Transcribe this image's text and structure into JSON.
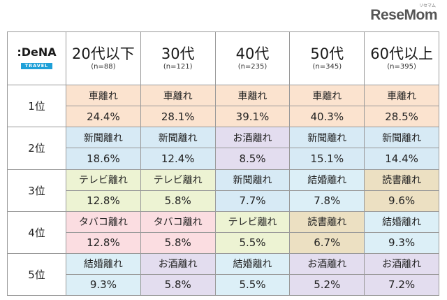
{
  "watermark": {
    "text": "ReseMom",
    "sub": "リセマム"
  },
  "logo": {
    "brand": ":DeNA",
    "sub": "TRAVEL"
  },
  "ages": [
    {
      "label": "20代以下",
      "n": "(n=88)"
    },
    {
      "label": "30代",
      "n": "(n=121)"
    },
    {
      "label": "40代",
      "n": "(n=235)"
    },
    {
      "label": "50代",
      "n": "(n=345)"
    },
    {
      "label": "60代以上",
      "n": "(n=395)"
    }
  ],
  "ranks": [
    {
      "rank": "1位",
      "cells": [
        {
          "item": "車離れ",
          "pct": "24.4%"
        },
        {
          "item": "車離れ",
          "pct": "28.1%"
        },
        {
          "item": "車離れ",
          "pct": "39.1%"
        },
        {
          "item": "車離れ",
          "pct": "40.3%"
        },
        {
          "item": "車離れ",
          "pct": "28.5%"
        }
      ]
    },
    {
      "rank": "2位",
      "cells": [
        {
          "item": "新聞離れ",
          "pct": "18.6%"
        },
        {
          "item": "新聞離れ",
          "pct": "12.4%"
        },
        {
          "item": "お酒離れ",
          "pct": "8.5%"
        },
        {
          "item": "新聞離れ",
          "pct": "15.1%"
        },
        {
          "item": "新聞離れ",
          "pct": "14.4%"
        }
      ]
    },
    {
      "rank": "3位",
      "cells": [
        {
          "item": "テレビ離れ",
          "pct": "12.8%"
        },
        {
          "item": "テレビ離れ",
          "pct": "5.8%"
        },
        {
          "item": "新聞離れ",
          "pct": "7.7%"
        },
        {
          "item": "結婚離れ",
          "pct": "7.8%"
        },
        {
          "item": "読書離れ",
          "pct": "9.6%"
        }
      ]
    },
    {
      "rank": "4位",
      "cells": [
        {
          "item": "タバコ離れ",
          "pct": "12.8%"
        },
        {
          "item": "タバコ離れ",
          "pct": "5.8%"
        },
        {
          "item": "テレビ離れ",
          "pct": "5.5%"
        },
        {
          "item": "読書離れ",
          "pct": "6.7%"
        },
        {
          "item": "結婚離れ",
          "pct": "9.3%"
        }
      ]
    },
    {
      "rank": "5位",
      "cells": [
        {
          "item": "結婚離れ",
          "pct": "9.3%"
        },
        {
          "item": "お酒離れ",
          "pct": "5.8%"
        },
        {
          "item": "結婚離れ",
          "pct": "5.5%"
        },
        {
          "item": "お酒離れ",
          "pct": "5.2%"
        },
        {
          "item": "お酒離れ",
          "pct": "7.2%"
        }
      ]
    }
  ],
  "colors": {
    "車離れ": "#fbe3cf",
    "新聞離れ": "#d7eaf5",
    "お酒離れ": "#e3ddef",
    "テレビ離れ": "#edf3d3",
    "結婚離れ": "#dceff7",
    "読書離れ": "#ece0c2",
    "タバコ離れ": "#fbdde1"
  }
}
